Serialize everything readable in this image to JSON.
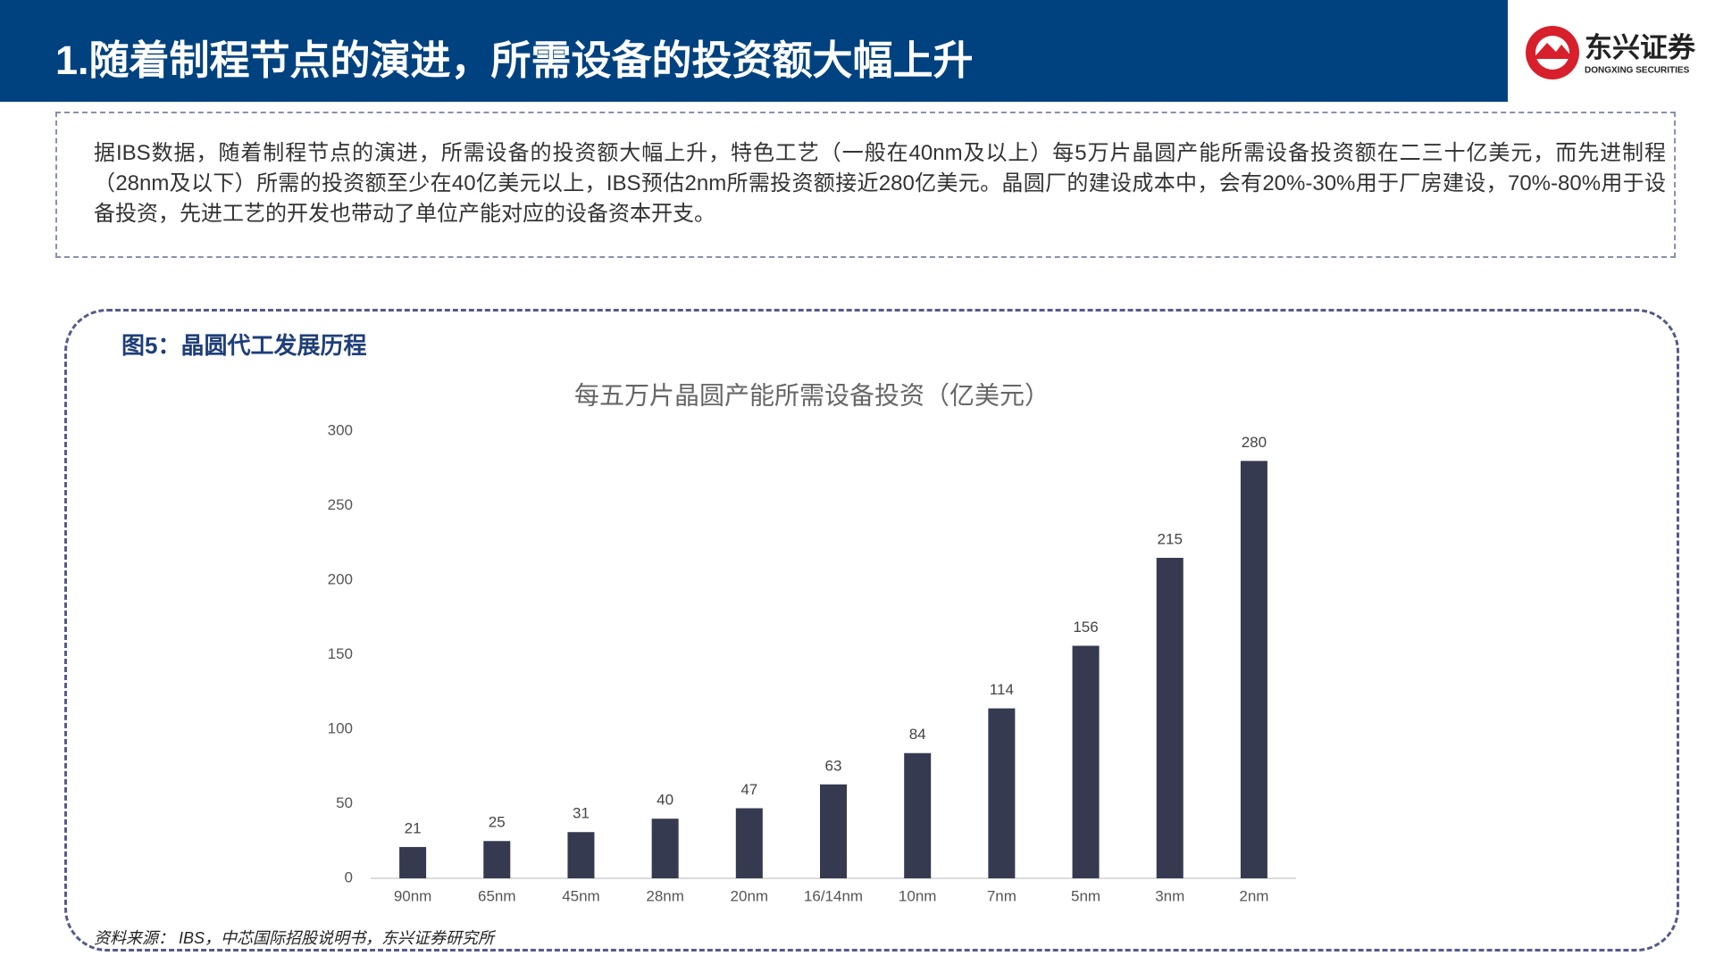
{
  "header": {
    "title": "1.随着制程节点的演进，所需设备的投资额大幅上升",
    "logo_text": "东兴证券",
    "logo_subtitle": "DONGXING SECURITIES"
  },
  "summary": {
    "text": "据IBS数据，随着制程节点的演进，所需设备的投资额大幅上升，特色工艺（一般在40nm及以上）每5万片晶圆产能所需设备投资额在二三十亿美元，而先进制程（28nm及以下）所需的投资额至少在40亿美元以上，IBS预估2nm所需投资额接近280亿美元。晶圆厂的建设成本中，会有20%-30%用于厂房建设，70%-80%用于设备投资，先进工艺的开发也带动了单位产能对应的设备资本开支。"
  },
  "figure": {
    "label": "图5：晶圆代工发展历程",
    "source": "资料来源： IBS，中芯国际招股说明书，东兴证券研究所"
  },
  "chart_data": {
    "type": "bar",
    "title": "每五万片晶圆产能所需设备投资（亿美元）",
    "categories": [
      "90nm",
      "65nm",
      "45nm",
      "28nm",
      "20nm",
      "16/14nm",
      "10nm",
      "7nm",
      "5nm",
      "3nm",
      "2nm"
    ],
    "values": [
      21,
      25,
      31,
      40,
      47,
      63,
      84,
      114,
      156,
      215,
      280
    ],
    "color": "#353a50",
    "ylim": [
      0,
      300
    ],
    "yticks": [
      0,
      50,
      100,
      150,
      200,
      250,
      300
    ],
    "grid": false
  }
}
